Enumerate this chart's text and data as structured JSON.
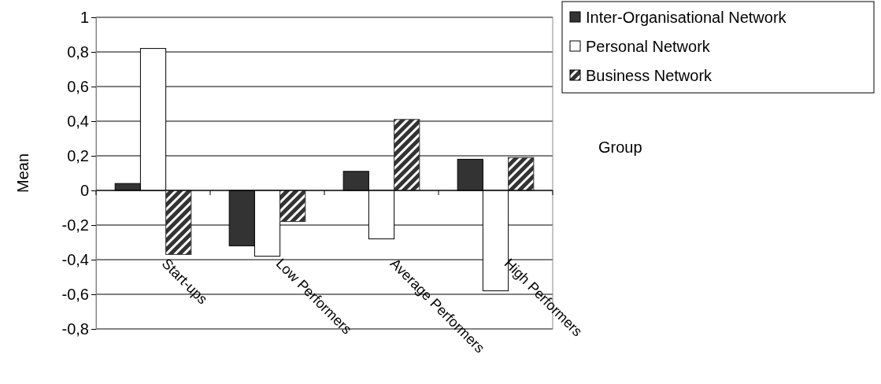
{
  "chart_data": {
    "type": "bar",
    "ylabel": "Mean",
    "xlabel": "Group",
    "categories": [
      "Start-ups",
      "Low Performers",
      "Average Performers",
      "High Performers"
    ],
    "series": [
      {
        "name": "Inter-Organisational Network",
        "color": "#333333",
        "values": [
          0.04,
          -0.32,
          0.11,
          0.18
        ]
      },
      {
        "name": "Personal Network",
        "color": "#ffffff",
        "values": [
          0.82,
          -0.38,
          -0.28,
          -0.58
        ]
      },
      {
        "name": "Business Network",
        "color": "#333333",
        "values": [
          -0.37,
          -0.18,
          0.41,
          0.19
        ]
      }
    ],
    "ylim": [
      -0.8,
      1
    ],
    "yticks": [
      {
        "value": -0.8,
        "label": "-0,8"
      },
      {
        "value": -0.6,
        "label": "-0,6"
      },
      {
        "value": -0.4,
        "label": "-0,4"
      },
      {
        "value": -0.2,
        "label": "-0,2"
      },
      {
        "value": 0,
        "label": "0"
      },
      {
        "value": 0.2,
        "label": "0,2"
      },
      {
        "value": 0.4,
        "label": "0,4"
      },
      {
        "value": 0.6,
        "label": "0,6"
      },
      {
        "value": 0.8,
        "label": "0,8"
      },
      {
        "value": 1,
        "label": "1"
      }
    ],
    "grid": "y",
    "legend": "top right"
  }
}
